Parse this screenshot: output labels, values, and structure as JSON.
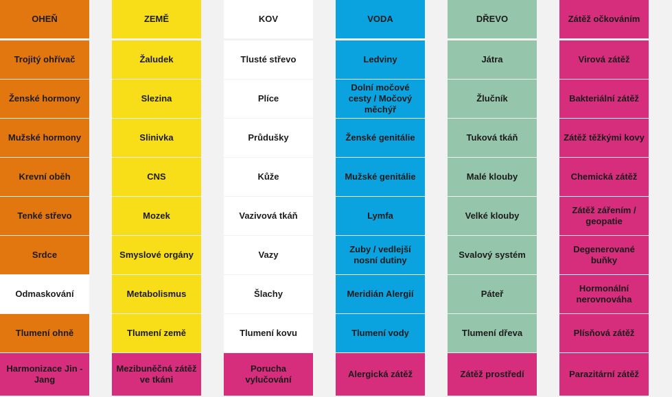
{
  "colors": {
    "orange": "#e2760f",
    "yellow": "#f7de18",
    "white": "#ffffff",
    "blue": "#0aa3df",
    "green": "#95c6ac",
    "pink": "#d62d7c",
    "gap": "#f2f2f2"
  },
  "columns": [
    {
      "id": "ohen",
      "cells": [
        {
          "text": "OHEŇ",
          "color": "orange"
        },
        {
          "text": "Trojitý ohřívač",
          "color": "orange"
        },
        {
          "text": "Ženské hormony",
          "color": "orange"
        },
        {
          "text": "Mužské hormony",
          "color": "orange"
        },
        {
          "text": "Krevní oběh",
          "color": "orange"
        },
        {
          "text": "Tenké střevo",
          "color": "orange"
        },
        {
          "text": "Srdce",
          "color": "orange"
        },
        {
          "text": "Odmaskování",
          "color": "white"
        },
        {
          "text": "Tlumení ohně",
          "color": "orange"
        },
        {
          "text": "Harmonizace Jin - Jang",
          "color": "pink"
        }
      ]
    },
    {
      "id": "zeme",
      "cells": [
        {
          "text": "ZEMĚ",
          "color": "yellow"
        },
        {
          "text": "Žaludek",
          "color": "yellow"
        },
        {
          "text": "Slezina",
          "color": "yellow"
        },
        {
          "text": "Slinivka",
          "color": "yellow"
        },
        {
          "text": "CNS",
          "color": "yellow"
        },
        {
          "text": "Mozek",
          "color": "yellow"
        },
        {
          "text": "Smyslové orgány",
          "color": "yellow"
        },
        {
          "text": "Metabolismus",
          "color": "yellow"
        },
        {
          "text": "Tlumení země",
          "color": "yellow"
        },
        {
          "text": "Mezibuněčná zátěž ve tkáni",
          "color": "pink"
        }
      ]
    },
    {
      "id": "kov",
      "cells": [
        {
          "text": "KOV",
          "color": "white"
        },
        {
          "text": "Tlusté střevo",
          "color": "white"
        },
        {
          "text": "Plíce",
          "color": "white"
        },
        {
          "text": "Průdušky",
          "color": "white"
        },
        {
          "text": "Kůže",
          "color": "white"
        },
        {
          "text": "Vazivová tkáň",
          "color": "white"
        },
        {
          "text": "Vazy",
          "color": "white"
        },
        {
          "text": "Šlachy",
          "color": "white"
        },
        {
          "text": "Tlumení kovu",
          "color": "white"
        },
        {
          "text": "Porucha vylučování",
          "color": "pink"
        }
      ]
    },
    {
      "id": "voda",
      "cells": [
        {
          "text": "VODA",
          "color": "blue"
        },
        {
          "text": "Ledviny",
          "color": "blue"
        },
        {
          "text": "Dolní močové cesty / Močový měchýř",
          "color": "blue"
        },
        {
          "text": "Ženské genitálie",
          "color": "blue"
        },
        {
          "text": "Mužské genitálie",
          "color": "blue"
        },
        {
          "text": "Lymfa",
          "color": "blue"
        },
        {
          "text": "Zuby / vedlejší nosní dutiny",
          "color": "blue"
        },
        {
          "text": "Meridián Alergií",
          "color": "blue"
        },
        {
          "text": "Tlumení vody",
          "color": "blue"
        },
        {
          "text": "Alergická zátěž",
          "color": "pink"
        }
      ]
    },
    {
      "id": "drevo",
      "cells": [
        {
          "text": "DŘEVO",
          "color": "green"
        },
        {
          "text": "Játra",
          "color": "green"
        },
        {
          "text": "Žlučník",
          "color": "green"
        },
        {
          "text": "Tuková tkáň",
          "color": "green"
        },
        {
          "text": "Malé klouby",
          "color": "green"
        },
        {
          "text": "Velké klouby",
          "color": "green"
        },
        {
          "text": "Svalový systém",
          "color": "green"
        },
        {
          "text": "Páteř",
          "color": "green"
        },
        {
          "text": "Tlumení dřeva",
          "color": "green"
        },
        {
          "text": "Zátěž prostředí",
          "color": "pink"
        }
      ]
    },
    {
      "id": "zateze",
      "cells": [
        {
          "text": "Zátěž očkováním",
          "color": "pink"
        },
        {
          "text": "Virová zátěž",
          "color": "pink"
        },
        {
          "text": "Bakteriální zátěž",
          "color": "pink"
        },
        {
          "text": "Zátěž těžkými kovy",
          "color": "pink"
        },
        {
          "text": "Chemická zátěž",
          "color": "pink"
        },
        {
          "text": "Zátěž zářením / geopatie",
          "color": "pink"
        },
        {
          "text": "Degenerované buňky",
          "color": "pink"
        },
        {
          "text": "Hormonální nerovnováha",
          "color": "pink"
        },
        {
          "text": "Plísňová zátěž",
          "color": "pink"
        },
        {
          "text": "Parazitární zátěž",
          "color": "pink"
        }
      ]
    }
  ]
}
